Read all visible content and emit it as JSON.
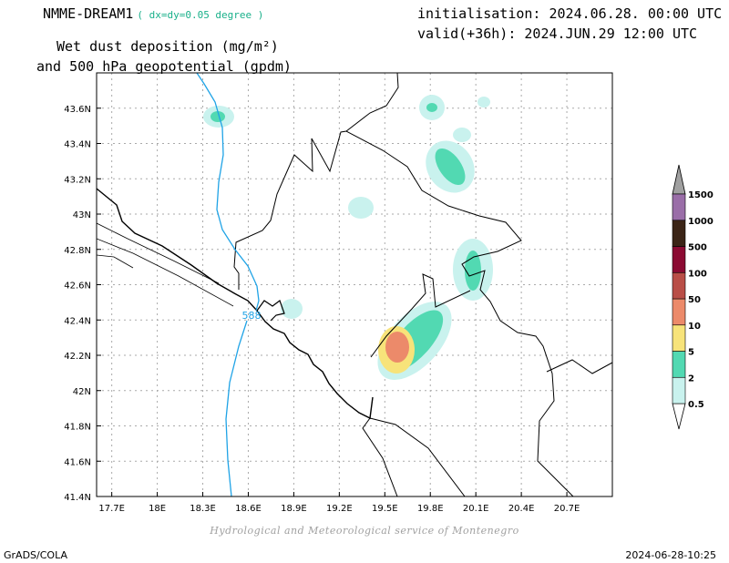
{
  "header": {
    "model": "NMME-DREAM1",
    "resolution": "( dx=dy=0.05 degree )",
    "title_line1": "Wet dust deposition (mg/m²)",
    "title_line2": "and 500 hPa geopotential (gpdm)",
    "init": "initialisation: 2024.06.28. 00:00 UTC",
    "valid": "valid(+36h): 2024.JUN.29 12:00 UTC"
  },
  "map": {
    "lon_range": [
      17.6,
      21.0
    ],
    "lat_range": [
      41.4,
      43.8
    ],
    "lon_ticks": [
      {
        "v": 17.7,
        "label": "17.7E"
      },
      {
        "v": 18.0,
        "label": "18E"
      },
      {
        "v": 18.3,
        "label": "18.3E"
      },
      {
        "v": 18.6,
        "label": "18.6E"
      },
      {
        "v": 18.9,
        "label": "18.9E"
      },
      {
        "v": 19.2,
        "label": "19.2E"
      },
      {
        "v": 19.5,
        "label": "19.5E"
      },
      {
        "v": 19.8,
        "label": "19.8E"
      },
      {
        "v": 20.1,
        "label": "20.1E"
      },
      {
        "v": 20.4,
        "label": "20.4E"
      },
      {
        "v": 20.7,
        "label": "20.7E"
      }
    ],
    "lat_ticks": [
      {
        "v": 41.4,
        "label": "41.4N"
      },
      {
        "v": 41.6,
        "label": "41.6N"
      },
      {
        "v": 41.8,
        "label": "41.8N"
      },
      {
        "v": 42.0,
        "label": "42N"
      },
      {
        "v": 42.2,
        "label": "42.2N"
      },
      {
        "v": 42.4,
        "label": "42.4N"
      },
      {
        "v": 42.6,
        "label": "42.6N"
      },
      {
        "v": 42.8,
        "label": "42.8N"
      },
      {
        "v": 43.0,
        "label": "43N"
      },
      {
        "v": 43.2,
        "label": "43.2N"
      },
      {
        "v": 43.4,
        "label": "43.4N"
      },
      {
        "v": 43.6,
        "label": "43.6N"
      }
    ],
    "geopotential_label": "588",
    "geopotential_color": "#1fa3e6",
    "deposition_features": [
      {
        "lon": 18.33,
        "lat": 43.55,
        "level": 2
      },
      {
        "lon": 19.89,
        "lat": 43.6,
        "level": 2
      },
      {
        "lon": 19.9,
        "lat": 43.29,
        "level": 2
      },
      {
        "lon": 20.01,
        "lat": 42.62,
        "level": 2
      },
      {
        "lon": 19.8,
        "lat": 42.42,
        "level": 2
      },
      {
        "lon": 19.55,
        "lat": 42.22,
        "level": 10
      }
    ]
  },
  "legend": {
    "levels": [
      "0.5",
      "2",
      "5",
      "10",
      "50",
      "100",
      "500",
      "1000",
      "1500"
    ],
    "colors": [
      "#c9f2ee",
      "#52d9b2",
      "#f7e37a",
      "#ec8a6a",
      "#b94e47",
      "#8b0a32",
      "#3b2416",
      "#9a6ea8"
    ],
    "under_color": "#ffffff",
    "over_color": "#a0a0a0"
  },
  "footer": {
    "credit": "Hydrological and Meteorological service of Montenegro",
    "software": "GrADS/COLA",
    "timestamp": "2024-06-28-10:25"
  }
}
